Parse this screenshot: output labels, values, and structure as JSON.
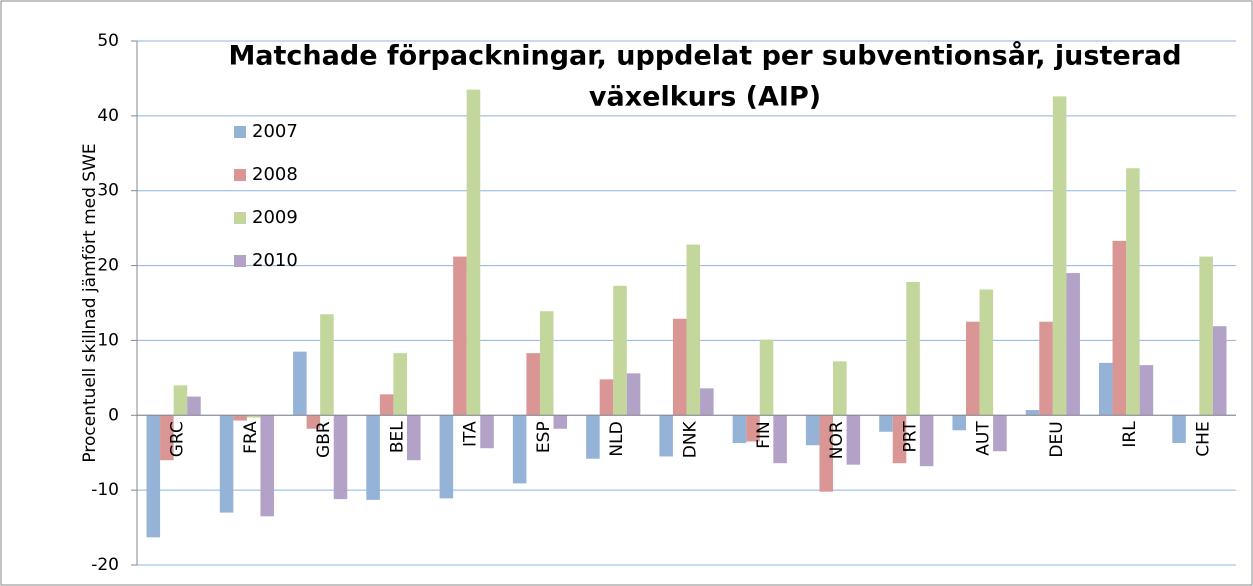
{
  "chart_data": {
    "type": "bar",
    "title": [
      "Matchade förpackningar, uppdelat per subventionsår, justerad",
      "växelkurs (AIP)"
    ],
    "y_label": "Procentuell skillnad jämfört med SWE",
    "categories": [
      "GRC",
      "FRA",
      "GBR",
      "BEL",
      "ITA",
      "ESP",
      "NLD",
      "DNK",
      "FIN",
      "NOR",
      "PRT",
      "AUT",
      "DEU",
      "IRL",
      "CHE"
    ],
    "series": [
      {
        "name": "2007",
        "color": "#95b3d7",
        "values": [
          -16.3,
          -13,
          8.5,
          -11.3,
          -11.1,
          -9.1,
          -5.8,
          -5.5,
          -3.7,
          -4,
          -2.2,
          -2,
          0.7,
          7,
          -3.7
        ]
      },
      {
        "name": "2008",
        "color": "#d99694",
        "values": [
          -6,
          -0.7,
          -1.8,
          2.8,
          21.2,
          8.3,
          4.8,
          12.9,
          -3.5,
          -10.2,
          -6.4,
          12.5,
          12.5,
          23.3,
          null
        ]
      },
      {
        "name": "2009",
        "color": "#c3d69b",
        "values": [
          4,
          -0.3,
          13.5,
          8.3,
          43.5,
          13.9,
          17.3,
          22.8,
          10.1,
          7.2,
          17.8,
          16.8,
          42.6,
          33,
          21.2
        ]
      },
      {
        "name": "2010",
        "color": "#b3a2c7",
        "values": [
          2.5,
          -13.5,
          -11.2,
          -6,
          -4.4,
          -1.8,
          5.6,
          3.6,
          -6.4,
          -6.6,
          -6.8,
          -4.8,
          19,
          6.7,
          11.9
        ]
      }
    ],
    "ylim": [
      -20,
      50
    ],
    "yticks": [
      -20,
      -10,
      0,
      10,
      20,
      30,
      40,
      50
    ],
    "grid": true,
    "legend": "top-left"
  }
}
